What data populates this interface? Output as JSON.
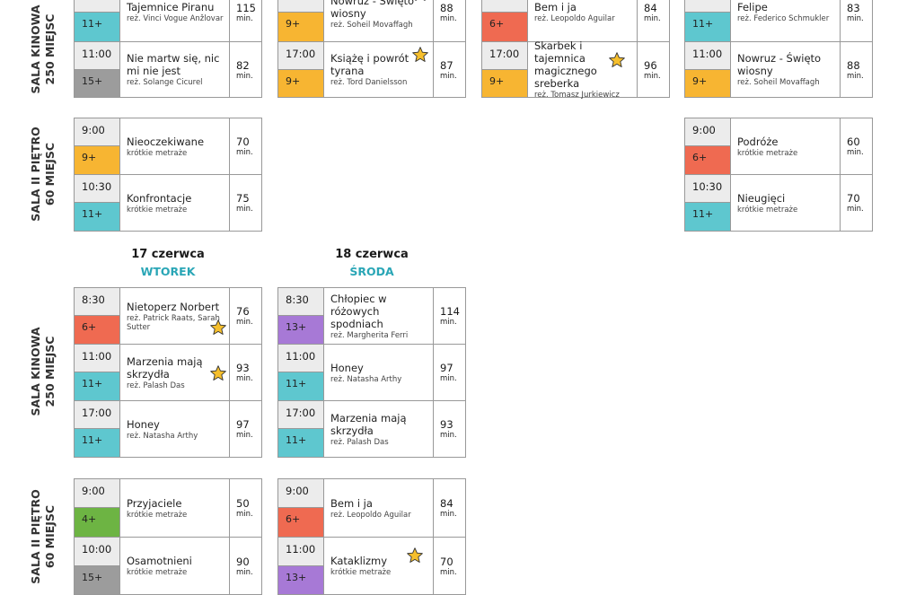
{
  "colors": {
    "age_9": "#f7b532",
    "age_11": "#5ec7cf",
    "age_15": "#9c9c9c",
    "age_6": "#ef6a51",
    "age_13": "#a779d6",
    "age_4": "#6db443",
    "weekday": "#2aa6b6",
    "star": "#f6bf2c"
  },
  "min_label": "min.",
  "rooms": {
    "kinowa_top": [
      "SALA KINOWA",
      "250 MIEJSC"
    ],
    "pietro_top": [
      "SALA II PIĘTRO",
      "60 MIEJSC"
    ],
    "kinowa_bottom": [
      "SALA KINOWA",
      "250 MIEJSC"
    ],
    "pietro_bottom": [
      "SALA II PIĘTRO",
      "60 MIEJSC"
    ]
  },
  "days": {
    "d17": {
      "date": "17 czerwca",
      "weekday": "WTOREK"
    },
    "d18": {
      "date": "18 czerwca",
      "weekday": "ŚRODA"
    }
  },
  "top_kinowa": {
    "c1": [
      {
        "time": "",
        "age": "11+",
        "title": "Tajemnice Piranu",
        "sub": "reż. Vinci Vogue Anžlovar",
        "dur": "115"
      },
      {
        "time": "11:00",
        "age": "15+",
        "title": "Nie martw się, nic mi nie jest",
        "sub": "reż. Solange Cicurel",
        "dur": "82"
      }
    ],
    "c2": [
      {
        "time": "",
        "age": "9+",
        "title": "Nowruz - Święto wiosny",
        "sub": "reż. Soheil Movaffagh",
        "dur": "88"
      },
      {
        "time": "17:00",
        "age": "9+",
        "title": "Książę i powrót tyrana",
        "sub": "reż. Tord Danielsson",
        "dur": "87"
      }
    ],
    "c3": [
      {
        "time": "",
        "age": "6+",
        "title": "Bem i ja",
        "sub": "reż. Leopoldo Aguilar",
        "dur": "84"
      },
      {
        "time": "17:00",
        "age": "9+",
        "title": "Skarbek i tajemnica magicznego sreberka",
        "sub": "reż. Tomasz Jurkiewicz",
        "dur": "96"
      }
    ],
    "c4": [
      {
        "time": "9:00",
        "age": "11+",
        "title": "Felipe",
        "sub": "reż. Federico Schmukler",
        "dur": "83"
      },
      {
        "time": "11:00",
        "age": "9+",
        "title": "Nowruz - Święto wiosny",
        "sub": "reż. Soheil Movaffagh",
        "dur": "88"
      }
    ]
  },
  "top_pietro": {
    "c1": [
      {
        "time": "9:00",
        "age": "9+",
        "title": "Nieoczekiwane",
        "sub": "krótkie metraże",
        "dur": "70"
      },
      {
        "time": "10:30",
        "age": "11+",
        "title": "Konfrontacje",
        "sub": "krótkie metraże",
        "dur": "75"
      }
    ],
    "c4": [
      {
        "time": "9:00",
        "age": "6+",
        "title": "Podróże",
        "sub": "krótkie metraże",
        "dur": "60"
      },
      {
        "time": "10:30",
        "age": "11+",
        "title": "Nieugięci",
        "sub": "krótkie metraże",
        "dur": "70"
      }
    ]
  },
  "bottom_kinowa": {
    "c1": [
      {
        "time": "8:30",
        "age": "6+",
        "title": "Nietoperz Norbert",
        "sub": "reż. Patrick Raats, Sarah Sutter",
        "dur": "76"
      },
      {
        "time": "11:00",
        "age": "11+",
        "title": "Marzenia mają skrzydła",
        "sub": "reż. Palash Das",
        "dur": "93"
      },
      {
        "time": "17:00",
        "age": "11+",
        "title": "Honey",
        "sub": "reż. Natasha Arthy",
        "dur": "97"
      }
    ],
    "c2": [
      {
        "time": "8:30",
        "age": "13+",
        "title": "Chłopiec w różowych spodniach",
        "sub": "reż. Margherita Ferri",
        "dur": "114"
      },
      {
        "time": "11:00",
        "age": "11+",
        "title": "Honey",
        "sub": "reż. Natasha Arthy",
        "dur": "97"
      },
      {
        "time": "17:00",
        "age": "11+",
        "title": "Marzenia mają skrzydła",
        "sub": "reż. Palash Das",
        "dur": "93"
      }
    ]
  },
  "bottom_pietro": {
    "c1": [
      {
        "time": "9:00",
        "age": "4+",
        "title": "Przyjaciele",
        "sub": "krótkie metraże",
        "dur": "50"
      },
      {
        "time": "10:00",
        "age": "15+",
        "title": "Osamotnieni",
        "sub": "krótkie metraże",
        "dur": "90"
      }
    ],
    "c2": [
      {
        "time": "9:00",
        "age": "6+",
        "title": "Bem i ja",
        "sub": "reż. Leopoldo Aguilar",
        "dur": "84"
      },
      {
        "time": "11:00",
        "age": "13+",
        "title": "Kataklizmy",
        "sub": "krótkie metraże",
        "dur": "70"
      }
    ]
  }
}
